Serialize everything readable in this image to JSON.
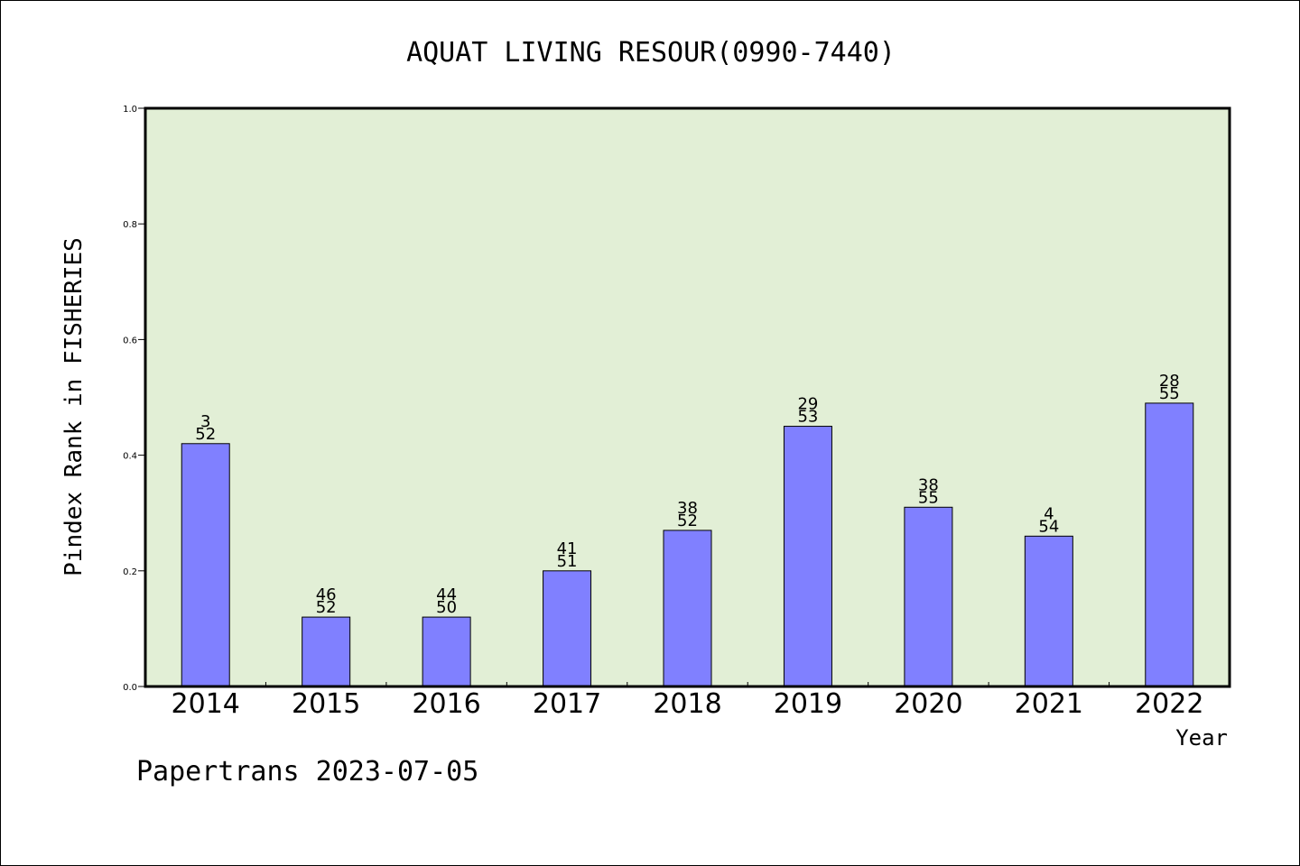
{
  "chart_data": {
    "type": "bar",
    "title": "AQUAT LIVING RESOUR(0990-7440)",
    "xlabel": "Year",
    "ylabel": "Pindex Rank in FISHERIES",
    "ylim": [
      0,
      1.0
    ],
    "yticks": [
      "0.0",
      "0.2",
      "0.4",
      "0.6",
      "0.8",
      "1.0"
    ],
    "categories": [
      "2014",
      "2015",
      "2016",
      "2017",
      "2018",
      "2019",
      "2020",
      "2021",
      "2022"
    ],
    "values": [
      0.42,
      0.12,
      0.12,
      0.2,
      0.27,
      0.45,
      0.31,
      0.26,
      0.49
    ],
    "rank_labels": [
      "3",
      "46",
      "44",
      "41",
      "38",
      "29",
      "38",
      "4",
      "28"
    ],
    "total_labels": [
      "52",
      "52",
      "50",
      "51",
      "52",
      "53",
      "55",
      "54",
      "55"
    ],
    "grid": false,
    "colors": {
      "plot_background": "#e2efd6",
      "bar_fill": "#8080ff",
      "bar_stroke": "#000000"
    }
  },
  "footer": {
    "text": "Papertrans 2023-07-05"
  }
}
